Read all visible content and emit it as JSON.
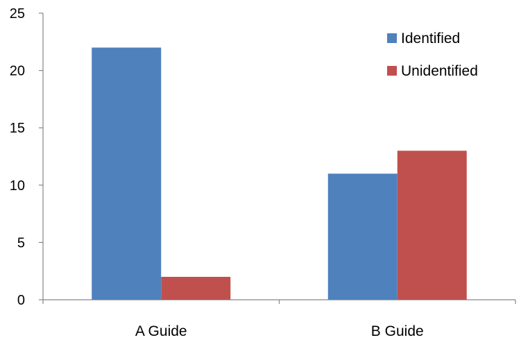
{
  "chart_data": {
    "type": "bar",
    "title": "",
    "xlabel": "",
    "ylabel": "",
    "categories": [
      "A Guide",
      "B Guide"
    ],
    "series": [
      {
        "name": "Identified",
        "values": [
          22,
          11
        ],
        "color": "#4F81BD"
      },
      {
        "name": "Unidentified",
        "values": [
          2,
          13
        ],
        "color": "#C0504D"
      }
    ],
    "ylim": [
      0,
      25
    ],
    "y_ticks": [
      0,
      5,
      10,
      15,
      20,
      25
    ],
    "grid": false,
    "legend_position": "top-right",
    "axis_color": "#868686"
  }
}
